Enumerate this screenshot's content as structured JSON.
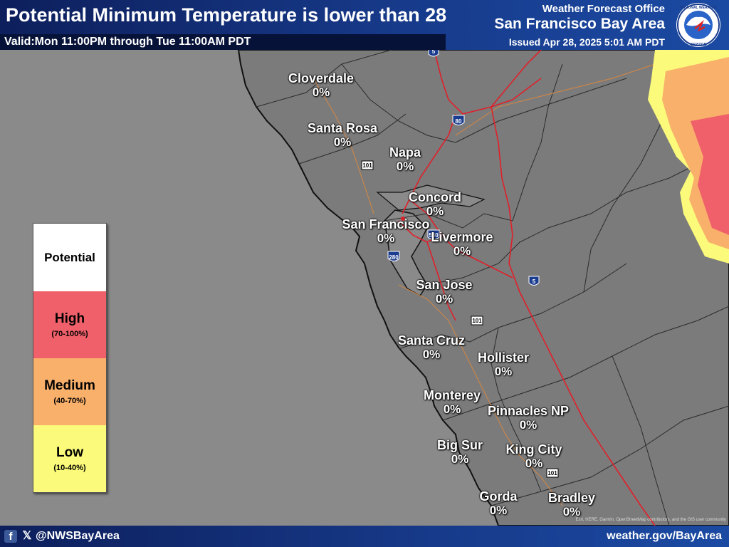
{
  "header": {
    "title": "Potential Minimum Temperature is lower than 28",
    "valid": "Valid:Mon 11:00PM through Tue 11:00AM PDT",
    "office_line1": "Weather Forecast Office",
    "office_line2": "San Francisco Bay Area",
    "issued": "Issued Apr 28, 2025 5:01 AM PDT",
    "logo_icon": "nws-logo-icon",
    "logo_text": "NATIONAL WEATHER SERVICE"
  },
  "legend": {
    "title": "Potential",
    "items": [
      {
        "label": "High",
        "range": "(70-100%)",
        "color": "#f0606a"
      },
      {
        "label": "Medium",
        "range": "(40-70%)",
        "color": "#f9b06b"
      },
      {
        "label": "Low",
        "range": "(10-40%)",
        "color": "#fbfa7a"
      }
    ]
  },
  "cities": [
    {
      "name": "Cloverdale",
      "value": "0%"
    },
    {
      "name": "Santa Rosa",
      "value": "0%"
    },
    {
      "name": "Napa",
      "value": "0%"
    },
    {
      "name": "Concord",
      "value": "0%"
    },
    {
      "name": "San Francisco",
      "value": "0%"
    },
    {
      "name": "Livermore",
      "value": "0%"
    },
    {
      "name": "San Jose",
      "value": "0%"
    },
    {
      "name": "Santa Cruz",
      "value": "0%"
    },
    {
      "name": "Hollister",
      "value": "0%"
    },
    {
      "name": "Monterey",
      "value": "0%"
    },
    {
      "name": "Pinnacles NP",
      "value": "0%"
    },
    {
      "name": "Big Sur",
      "value": "0%"
    },
    {
      "name": "King City",
      "value": "0%"
    },
    {
      "name": "Gorda",
      "value": "0%"
    },
    {
      "name": "Bradley",
      "value": "0%"
    }
  ],
  "highways": [
    "5",
    "80",
    "101",
    "580",
    "280",
    "5",
    "101",
    "101"
  ],
  "attribution": "Esri, HERE, Garmin, OpenStreetMap contributors, and the GIS user community",
  "footer": {
    "facebook_icon": "facebook-icon",
    "x_icon": "x-icon",
    "handle": "@NWSBayArea",
    "website": "weather.gov/BayArea"
  },
  "colors": {
    "ocean": "#8a8a8a",
    "land": "#7a7a7a",
    "header": "#173a8a",
    "high": "#f0606a",
    "medium": "#f9b06b",
    "low": "#fbfa7a",
    "roads": "#e0202a"
  }
}
